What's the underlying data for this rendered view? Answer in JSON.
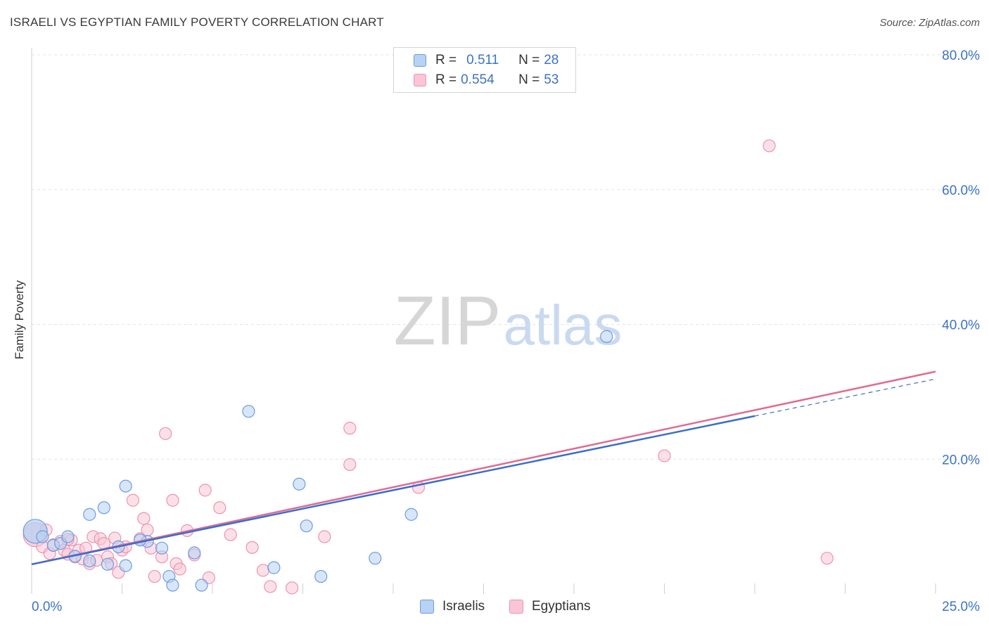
{
  "header": {
    "title": "ISRAELI VS EGYPTIAN FAMILY POVERTY CORRELATION CHART",
    "source": "Source: ZipAtlas.com"
  },
  "watermark": {
    "zip": "ZIP",
    "atlas": "atlas"
  },
  "legend": {
    "israelis": {
      "r_label": "R = ",
      "r_value": "0.511",
      "n_label": "N = ",
      "n_value": "28"
    },
    "egyptians": {
      "r_label": "R = ",
      "r_value": "0.554",
      "n_label": "N = ",
      "n_value": "53"
    }
  },
  "bottom_legend": {
    "israelis": "Israelis",
    "egyptians": "Egyptians"
  },
  "colors": {
    "israelis_fill": "#b7d2f2",
    "israelis_stroke": "#6d9de0",
    "israelis_line": "#3a6fcc",
    "egyptians_fill": "#f9c6d6",
    "egyptians_stroke": "#ee93b0",
    "egyptians_line": "#e06b93",
    "axis_label": "#3d73c4",
    "grid": "#e3e3e3"
  },
  "chart_data": {
    "type": "scatter",
    "title": "ISRAELI VS EGYPTIAN FAMILY POVERTY CORRELATION CHART",
    "xlabel": "",
    "ylabel": "Family Poverty",
    "xlim": [
      0,
      25
    ],
    "ylim": [
      0,
      80
    ],
    "x_tick_labels": [
      "0.0%",
      "25.0%"
    ],
    "y_ticks": [
      20,
      40,
      60,
      80
    ],
    "y_tick_labels": [
      "20.0%",
      "40.0%",
      "60.0%",
      "80.0%"
    ],
    "grid": true,
    "legend_position": "top-center",
    "series": [
      {
        "name": "Israelis",
        "r": 0.511,
        "n": 28,
        "trend": {
          "x0": 0,
          "y0": 4.4,
          "x1": 20,
          "y1": 26.4,
          "dashed_to_x": 25,
          "dashed_to_y": 31.9
        },
        "points": [
          [
            0.1,
            9.3,
            1
          ],
          [
            0.3,
            8.5,
            0
          ],
          [
            0.6,
            7.2,
            0
          ],
          [
            0.8,
            7.5,
            0
          ],
          [
            1.0,
            8.5,
            0
          ],
          [
            1.2,
            5.6,
            0
          ],
          [
            1.6,
            11.8,
            0
          ],
          [
            1.6,
            4.9,
            0
          ],
          [
            2.0,
            12.8,
            0
          ],
          [
            2.1,
            4.4,
            0
          ],
          [
            2.4,
            7.0,
            0
          ],
          [
            2.6,
            4.2,
            0
          ],
          [
            2.6,
            16.0,
            0
          ],
          [
            3.2,
            7.8,
            0
          ],
          [
            3.6,
            6.8,
            0
          ],
          [
            3.8,
            2.6,
            0
          ],
          [
            3.9,
            1.3,
            0
          ],
          [
            4.5,
            6.1,
            0
          ],
          [
            4.7,
            1.3,
            0
          ],
          [
            6.0,
            27.1,
            0
          ],
          [
            6.7,
            3.9,
            0
          ],
          [
            7.4,
            16.3,
            0
          ],
          [
            7.6,
            10.1,
            0
          ],
          [
            8.0,
            2.6,
            0
          ],
          [
            9.5,
            5.3,
            0
          ],
          [
            10.5,
            11.8,
            0
          ],
          [
            15.9,
            38.2,
            0
          ],
          [
            3.0,
            8.0,
            0
          ]
        ]
      },
      {
        "name": "Egyptians",
        "r": 0.554,
        "n": 53,
        "trend": {
          "x0": 0,
          "y0": 4.4,
          "x1": 25,
          "y1": 33.0
        },
        "points": [
          [
            0.1,
            8.8,
            1
          ],
          [
            0.4,
            9.5,
            0
          ],
          [
            0.3,
            7.0,
            0
          ],
          [
            0.5,
            6.0,
            0
          ],
          [
            0.6,
            7.3,
            0
          ],
          [
            0.8,
            7.8,
            0
          ],
          [
            0.9,
            6.5,
            0
          ],
          [
            1.0,
            5.9,
            0
          ],
          [
            1.1,
            8.0,
            0
          ],
          [
            1.2,
            5.5,
            0
          ],
          [
            1.3,
            6.5,
            0
          ],
          [
            1.4,
            5.2,
            0
          ],
          [
            1.5,
            6.8,
            0
          ],
          [
            1.6,
            4.5,
            0
          ],
          [
            1.7,
            8.5,
            0
          ],
          [
            1.8,
            5.0,
            0
          ],
          [
            1.9,
            8.2,
            0
          ],
          [
            2.0,
            7.5,
            0
          ],
          [
            2.1,
            5.5,
            0
          ],
          [
            2.2,
            4.5,
            0
          ],
          [
            2.3,
            8.3,
            0
          ],
          [
            2.4,
            3.2,
            0
          ],
          [
            2.5,
            6.5,
            0
          ],
          [
            2.6,
            7.0,
            0
          ],
          [
            2.8,
            13.9,
            0
          ],
          [
            3.0,
            8.2,
            0
          ],
          [
            3.1,
            11.2,
            0
          ],
          [
            3.2,
            9.5,
            0
          ],
          [
            3.3,
            6.8,
            0
          ],
          [
            3.4,
            2.6,
            0
          ],
          [
            3.6,
            5.5,
            0
          ],
          [
            3.7,
            23.8,
            0
          ],
          [
            3.9,
            13.9,
            0
          ],
          [
            4.0,
            4.5,
            0
          ],
          [
            4.1,
            3.7,
            0
          ],
          [
            4.3,
            9.4,
            0
          ],
          [
            4.5,
            5.8,
            0
          ],
          [
            4.8,
            15.4,
            0
          ],
          [
            4.9,
            2.4,
            0
          ],
          [
            5.2,
            12.8,
            0
          ],
          [
            5.5,
            8.8,
            0
          ],
          [
            6.1,
            6.9,
            0
          ],
          [
            6.4,
            3.5,
            0
          ],
          [
            6.6,
            1.1,
            0
          ],
          [
            7.2,
            0.9,
            0
          ],
          [
            8.1,
            8.5,
            0
          ],
          [
            8.8,
            24.6,
            0
          ],
          [
            8.8,
            19.2,
            0
          ],
          [
            10.7,
            15.8,
            0
          ],
          [
            17.5,
            20.5,
            0
          ],
          [
            20.4,
            66.5,
            0
          ],
          [
            22.0,
            5.3,
            0
          ],
          [
            1.0,
            8.1,
            0
          ]
        ]
      }
    ]
  }
}
